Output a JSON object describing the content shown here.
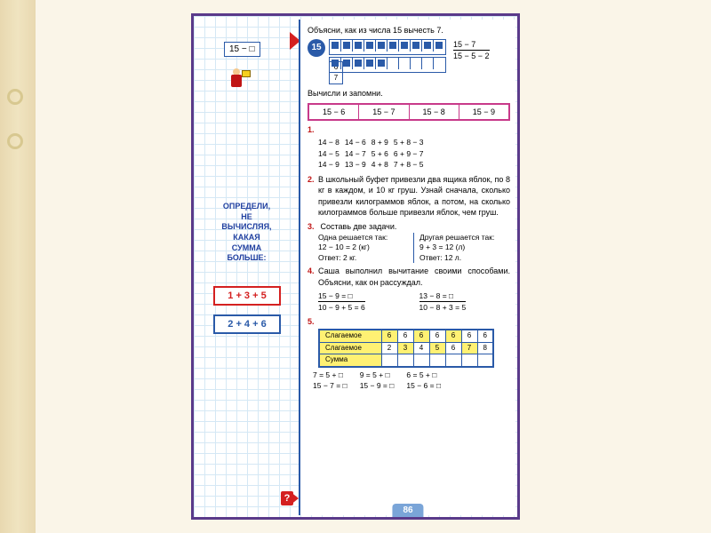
{
  "left": {
    "topExpr": "15 − □",
    "sideTitle": "ОПРЕДЕЛИ,\nНЕ\nВЫЧИСЛЯЯ,\nКАКАЯ\nСУММА\nБОЛЬШЕ:",
    "sum1": "1 + 3 + 5",
    "sum1Color": "#d42020",
    "sum2": "2 + 4 + 6",
    "sum2Color": "#2a5aa8"
  },
  "intro": "Объясни, как из числа 15 вычесть 7.",
  "badge": "15",
  "miniTbl": [
    "6",
    "7"
  ],
  "squaresTop": 10,
  "squaresBot": 5,
  "squaresBotEmpty": 5,
  "eq1": "15 − 7",
  "eq2": "15 − 5 − 2",
  "memorizeTitle": "Вычисли и запомни.",
  "memorize": [
    "15 − 6",
    "15 − 7",
    "15 − 8",
    "15 − 9"
  ],
  "t1": {
    "num": "1.",
    "c": [
      [
        "14 − 8",
        "14 − 5",
        "14 − 9"
      ],
      [
        "14 − 6",
        "14 − 7",
        "13 − 9"
      ],
      [
        "8 + 9",
        "5 + 6",
        "4 + 8"
      ],
      [
        "5 + 8 − 3",
        "6 + 9 − 7",
        "7 + 8 − 5"
      ]
    ]
  },
  "t2": {
    "num": "2.",
    "text": "В школьный буфет привезли два ящика яблок, по 8 кг в каждом, и 10 кг груш. Узнай сначала, сколько привезли килограммов яблок, а потом, на сколько килограммов больше привезли яблок, чем груш."
  },
  "t3": {
    "num": "3.",
    "title": "Составь две задачи.",
    "l1": "Одна решается так:",
    "l2": "12 − 10 = 2 (кг)",
    "l3": "Ответ: 2 кг.",
    "r1": "Другая решается так:",
    "r2": "9 + 3 = 12 (л)",
    "r3": "Ответ: 12 л."
  },
  "t4": {
    "num": "4.",
    "text": "Саша выполнил вычитание своими способами. Объясни, как он рассуждал.",
    "a1": "15 − 9 = □",
    "a2": "10 − 9 + 5 = 6",
    "b1": "13 − 8 = □",
    "b2": "10 − 8 + 3 = 5"
  },
  "t5": {
    "num": "5.",
    "rows": [
      {
        "lbl": "Слагаемое",
        "cells": [
          "6",
          "6",
          "6",
          "6",
          "6",
          "6",
          "6"
        ],
        "hl": [
          0,
          2,
          4
        ]
      },
      {
        "lbl": "Слагаемое",
        "cells": [
          "2",
          "3",
          "4",
          "5",
          "6",
          "7",
          "8"
        ],
        "hl": [
          1,
          3,
          5
        ]
      },
      {
        "lbl": "Сумма",
        "cells": [
          "",
          "",
          "",
          "",
          "",
          "",
          ""
        ],
        "hl": []
      }
    ]
  },
  "bottom": [
    {
      "a": "7 = 5 + □",
      "b": "15 − 7 = □"
    },
    {
      "a": "9 = 5 + □",
      "b": "15 − 9 = □"
    },
    {
      "a": "6 = 5 + □",
      "b": "15 − 6 = □"
    }
  ],
  "pageNum": "86",
  "qmark": "?"
}
